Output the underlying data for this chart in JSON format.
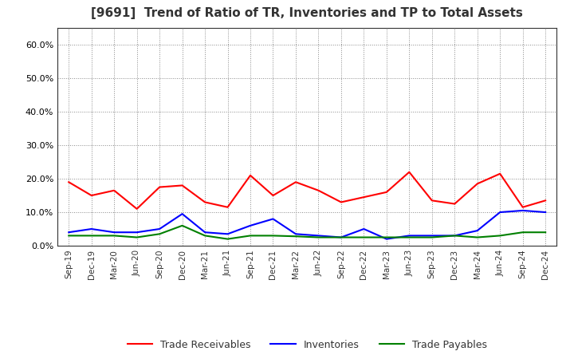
{
  "title": "[9691]  Trend of Ratio of TR, Inventories and TP to Total Assets",
  "x_labels": [
    "Sep-19",
    "Dec-19",
    "Mar-20",
    "Jun-20",
    "Sep-20",
    "Dec-20",
    "Mar-21",
    "Jun-21",
    "Sep-21",
    "Dec-21",
    "Mar-22",
    "Jun-22",
    "Sep-22",
    "Dec-22",
    "Mar-23",
    "Jun-23",
    "Sep-23",
    "Dec-23",
    "Mar-24",
    "Jun-24",
    "Sep-24",
    "Dec-24"
  ],
  "trade_receivables": [
    0.19,
    0.15,
    0.165,
    0.11,
    0.175,
    0.18,
    0.13,
    0.115,
    0.21,
    0.15,
    0.19,
    0.165,
    0.13,
    0.145,
    0.16,
    0.22,
    0.135,
    0.125,
    0.185,
    0.215,
    0.115,
    0.135
  ],
  "inventories": [
    0.04,
    0.05,
    0.04,
    0.04,
    0.05,
    0.095,
    0.04,
    0.035,
    0.06,
    0.08,
    0.035,
    0.03,
    0.025,
    0.05,
    0.02,
    0.03,
    0.03,
    0.03,
    0.045,
    0.1,
    0.105,
    0.1
  ],
  "trade_payables": [
    0.03,
    0.03,
    0.03,
    0.025,
    0.035,
    0.06,
    0.03,
    0.02,
    0.03,
    0.03,
    0.028,
    0.025,
    0.025,
    0.025,
    0.025,
    0.025,
    0.025,
    0.03,
    0.025,
    0.03,
    0.04,
    0.04
  ],
  "tr_color": "#FF0000",
  "inv_color": "#0000FF",
  "tp_color": "#008000",
  "ylim": [
    0.0,
    0.65
  ],
  "yticks": [
    0.0,
    0.1,
    0.2,
    0.3,
    0.4,
    0.5,
    0.6
  ],
  "legend_labels": [
    "Trade Receivables",
    "Inventories",
    "Trade Payables"
  ],
  "bg_color": "#FFFFFF",
  "grid_color": "#888888",
  "title_color": "#333333"
}
